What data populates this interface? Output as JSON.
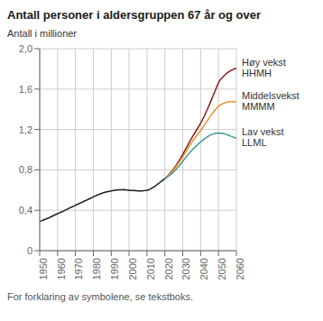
{
  "chart_data": {
    "type": "line",
    "title": "Antall personer i aldersgruppen 67 år og over",
    "y_label": "Antall i millioner",
    "footnote": "For forklaring av symbolene, se tekstboks.",
    "xlim": [
      1950,
      2060
    ],
    "xticks": [
      1950,
      1960,
      1970,
      1980,
      1990,
      2000,
      2010,
      2020,
      2030,
      2040,
      2050,
      2060
    ],
    "ylim": [
      0,
      2.0
    ],
    "yticks": [
      0,
      {
        "value": 0.4,
        "label": "0,4"
      },
      {
        "value": 0.8,
        "label": "0,8"
      },
      {
        "value": 1.2,
        "label": "1,2"
      },
      {
        "value": 1.6,
        "label": "1,6"
      },
      {
        "value": 2.0,
        "label": "2,0"
      }
    ],
    "grid": true,
    "series": [
      {
        "color": "#1a1a1a",
        "x": [
          1950,
          1951,
          1952,
          1953,
          1954,
          1955,
          1956,
          1957,
          1958,
          1959,
          1960,
          1961,
          1962,
          1963,
          1964,
          1965,
          1966,
          1967,
          1968,
          1969,
          1970,
          1971,
          1972,
          1973,
          1974,
          1975,
          1976,
          1977,
          1978,
          1979,
          1980,
          1981,
          1982,
          1983,
          1984,
          1985,
          1986,
          1987,
          1988,
          1989,
          1990,
          1991,
          1992,
          1993,
          1994,
          1995,
          1996,
          1997,
          1998,
          1999,
          2000,
          2001,
          2002,
          2003,
          2004,
          2005,
          2006,
          2007,
          2008,
          2009,
          2010,
          2011,
          2012,
          2013,
          2014,
          2015,
          2016,
          2017,
          2018,
          2019,
          2020
        ],
        "values": [
          0.29,
          0.296,
          0.303,
          0.31,
          0.317,
          0.324,
          0.333,
          0.341,
          0.35,
          0.358,
          0.366,
          0.374,
          0.382,
          0.39,
          0.398,
          0.407,
          0.416,
          0.425,
          0.433,
          0.441,
          0.45,
          0.458,
          0.466,
          0.474,
          0.482,
          0.491,
          0.499,
          0.507,
          0.516,
          0.524,
          0.533,
          0.541,
          0.549,
          0.557,
          0.563,
          0.57,
          0.576,
          0.581,
          0.585,
          0.588,
          0.591,
          0.595,
          0.598,
          0.6,
          0.602,
          0.603,
          0.603,
          0.604,
          0.602,
          0.601,
          0.599,
          0.597,
          0.596,
          0.595,
          0.594,
          0.592,
          0.592,
          0.592,
          0.593,
          0.595,
          0.598,
          0.603,
          0.612,
          0.621,
          0.633,
          0.645,
          0.659,
          0.672,
          0.686,
          0.7,
          0.714
        ]
      },
      {
        "name": "Høy vekst\nHHMH",
        "color": "#8b1a1a",
        "x": [
          2020,
          2021,
          2022,
          2023,
          2024,
          2025,
          2026,
          2027,
          2028,
          2029,
          2030,
          2031,
          2032,
          2033,
          2034,
          2035,
          2036,
          2037,
          2038,
          2039,
          2040,
          2041,
          2042,
          2043,
          2044,
          2045,
          2046,
          2047,
          2048,
          2049,
          2050,
          2051,
          2052,
          2053,
          2054,
          2055,
          2056,
          2057,
          2058,
          2059,
          2060
        ],
        "values": [
          0.714,
          0.73,
          0.748,
          0.768,
          0.79,
          0.813,
          0.838,
          0.864,
          0.892,
          0.921,
          0.952,
          0.985,
          1.018,
          1.051,
          1.083,
          1.115,
          1.145,
          1.174,
          1.203,
          1.232,
          1.262,
          1.295,
          1.33,
          1.368,
          1.408,
          1.45,
          1.492,
          1.536,
          1.578,
          1.621,
          1.665,
          1.693,
          1.712,
          1.73,
          1.748,
          1.762,
          1.774,
          1.785,
          1.794,
          1.801,
          1.806
        ]
      },
      {
        "name": "Middelsvekst\nMMMM",
        "color": "#e8922a",
        "x": [
          2020,
          2021,
          2022,
          2023,
          2024,
          2025,
          2026,
          2027,
          2028,
          2029,
          2030,
          2031,
          2032,
          2033,
          2034,
          2035,
          2036,
          2037,
          2038,
          2039,
          2040,
          2041,
          2042,
          2043,
          2044,
          2045,
          2046,
          2047,
          2048,
          2049,
          2050,
          2051,
          2052,
          2053,
          2054,
          2055,
          2056,
          2057,
          2058,
          2059,
          2060
        ],
        "values": [
          0.714,
          0.728,
          0.744,
          0.762,
          0.782,
          0.803,
          0.826,
          0.85,
          0.875,
          0.901,
          0.928,
          0.957,
          0.986,
          1.015,
          1.043,
          1.07,
          1.096,
          1.12,
          1.144,
          1.167,
          1.19,
          1.215,
          1.24,
          1.267,
          1.294,
          1.32,
          1.345,
          1.368,
          1.39,
          1.411,
          1.43,
          1.443,
          1.452,
          1.46,
          1.467,
          1.472,
          1.475,
          1.476,
          1.477,
          1.475,
          1.472
        ]
      },
      {
        "name": "Lav vekst\nLLML",
        "color": "#3a9a96",
        "x": [
          2020,
          2021,
          2022,
          2023,
          2024,
          2025,
          2026,
          2027,
          2028,
          2029,
          2030,
          2031,
          2032,
          2033,
          2034,
          2035,
          2036,
          2037,
          2038,
          2039,
          2040,
          2041,
          2042,
          2043,
          2044,
          2045,
          2046,
          2047,
          2048,
          2049,
          2050,
          2051,
          2052,
          2053,
          2054,
          2055,
          2056,
          2057,
          2058,
          2059,
          2060
        ],
        "values": [
          0.714,
          0.725,
          0.737,
          0.75,
          0.765,
          0.782,
          0.8,
          0.82,
          0.84,
          0.862,
          0.884,
          0.907,
          0.93,
          0.952,
          0.973,
          0.993,
          1.012,
          1.029,
          1.045,
          1.061,
          1.076,
          1.091,
          1.106,
          1.118,
          1.13,
          1.14,
          1.148,
          1.155,
          1.16,
          1.163,
          1.165,
          1.163,
          1.161,
          1.158,
          1.153,
          1.147,
          1.14,
          1.133,
          1.126,
          1.12,
          1.114
        ]
      }
    ]
  }
}
